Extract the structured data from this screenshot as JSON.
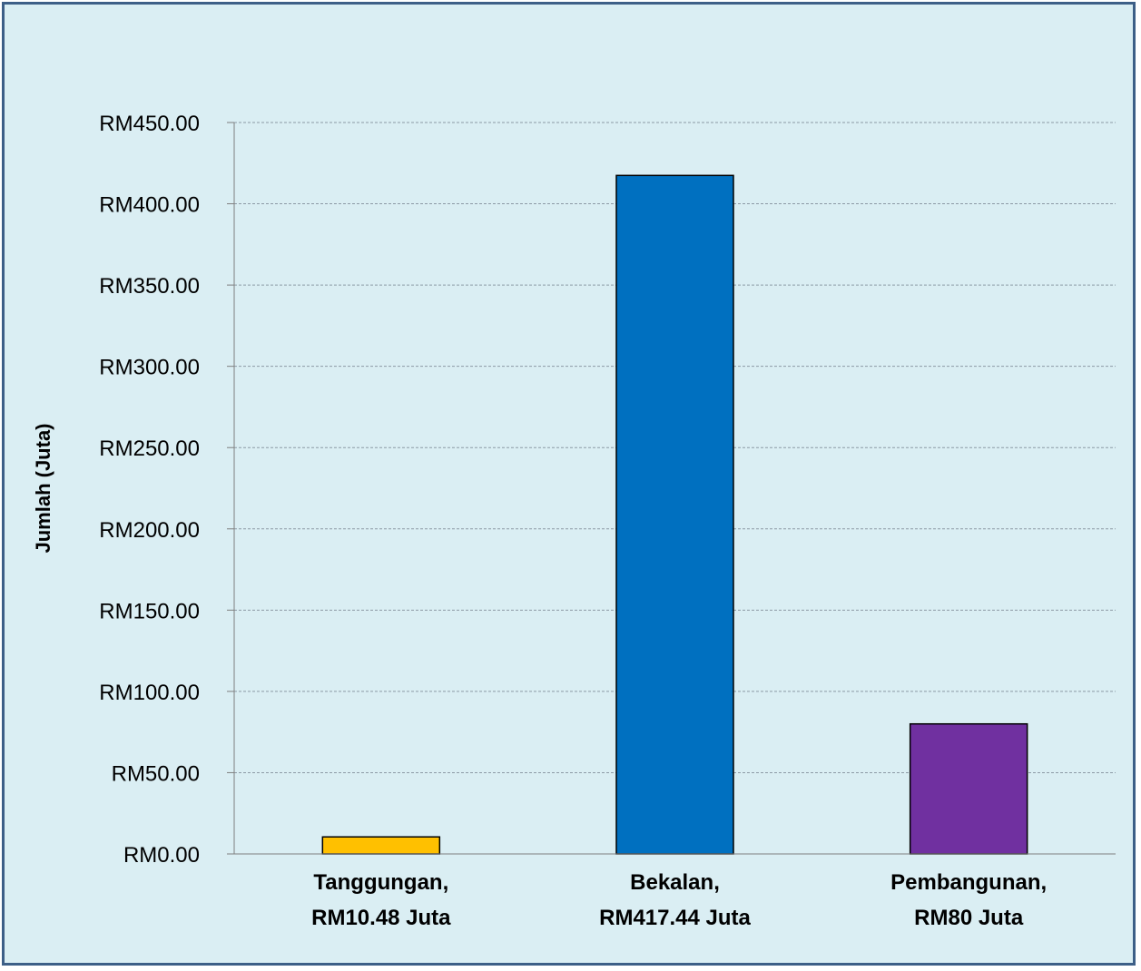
{
  "chart_data": {
    "type": "bar",
    "title": "",
    "xlabel": "",
    "ylabel": "Jumlah (Juta)",
    "ylim": [
      0,
      450
    ],
    "ytick_step": 50,
    "ytick_prefix": "RM",
    "ytick_decimals": 2,
    "grid": true,
    "legend": "none",
    "categories": [
      [
        "Tanggungan,",
        "RM10.48 Juta"
      ],
      [
        "Bekalan,",
        "RM417.44 Juta"
      ],
      [
        "Pembangunan,",
        "RM80 Juta"
      ]
    ],
    "values": [
      10.48,
      417.44,
      80
    ],
    "colors": [
      "#ffc000",
      "#0070c0",
      "#7030a0"
    ]
  },
  "colors": {
    "background": "#daeef3",
    "frame_border": "#3d5f87",
    "gridline": "#8c9aa5",
    "axis": "#7f7f7f"
  }
}
